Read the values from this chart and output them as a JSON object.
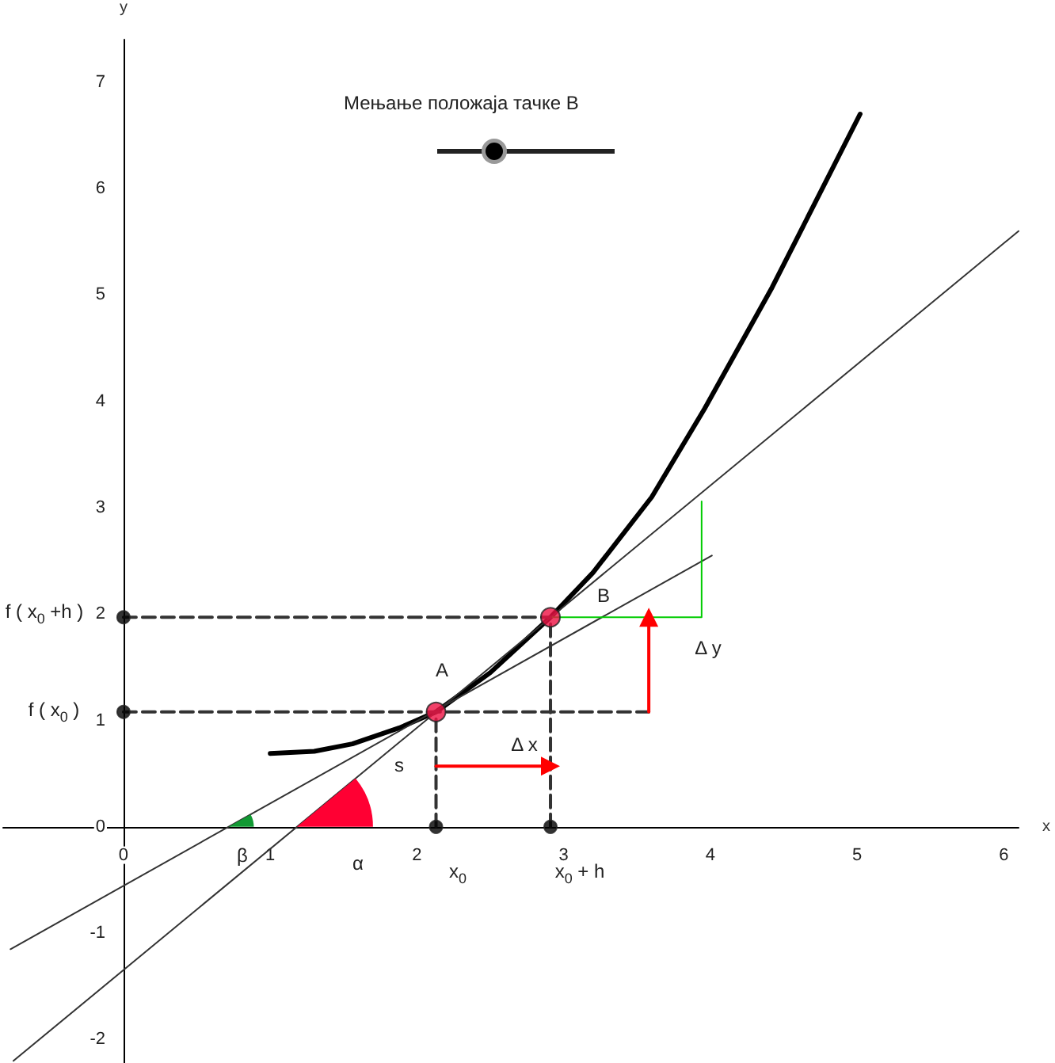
{
  "chart_data": {
    "type": "line",
    "title": "Мењање положаја тачке B",
    "xlabel": "x",
    "ylabel": "y",
    "xlim": [
      -0.82,
      6.1
    ],
    "ylim": [
      -2.22,
      7.4
    ],
    "xticks": [
      0,
      1,
      2,
      3,
      4,
      5,
      6
    ],
    "yticks": [
      -2,
      -1,
      0,
      1,
      2,
      3,
      4,
      5,
      6,
      7
    ],
    "grid": false,
    "marker": "none",
    "line_style": "solid",
    "series": [
      {
        "color": "#000000",
        "x": [
          1.0,
          1.3,
          1.56,
          1.88,
          2.13,
          2.5,
          2.91,
          3.2,
          3.6,
          3.96,
          4.42,
          5.02
        ],
        "values": [
          0.69,
          0.71,
          0.78,
          0.93,
          1.08,
          1.45,
          1.97,
          2.39,
          3.1,
          3.93,
          5.07,
          6.7
        ]
      },
      {
        "color": "#333333",
        "x": [
          -0.77,
          4.01
        ],
        "values": [
          -1.15,
          2.55
        ]
      },
      {
        "color": "#333333",
        "x": [
          -0.75,
          6.1
        ],
        "values": [
          -2.2,
          5.6
        ]
      },
      {
        "color": "#00cc00",
        "x": [
          2.91,
          3.94,
          3.94
        ],
        "values": [
          1.97,
          1.97,
          3.06
        ]
      },
      {
        "color": "#333333",
        "line_style": "dashed",
        "x": [
          0,
          3.58
        ],
        "values": [
          1.08,
          1.08
        ]
      },
      {
        "color": "#333333",
        "line_style": "dashed",
        "x": [
          0,
          2.91
        ],
        "values": [
          1.97,
          1.97
        ]
      },
      {
        "color": "#333333",
        "line_style": "dashed",
        "x": [
          2.13,
          2.13
        ],
        "values": [
          0,
          1.08
        ]
      },
      {
        "color": "#333333",
        "line_style": "dashed",
        "x": [
          2.91,
          2.91
        ],
        "values": [
          0,
          1.97
        ]
      },
      {
        "color": "#ff0000",
        "marker": "triangle",
        "x": [
          2.13,
          2.91
        ],
        "values": [
          0.57,
          0.57
        ]
      },
      {
        "color": "#ff0000",
        "marker": "triangle",
        "x": [
          3.58,
          3.58
        ],
        "values": [
          1.08,
          1.97
        ]
      },
      {
        "type": "scatter",
        "marker": "circle",
        "color": "#000000",
        "x": [
          0,
          0,
          2.13,
          2.91
        ],
        "values": [
          1.08,
          1.97,
          0,
          0
        ]
      },
      {
        "type": "scatter",
        "marker": "circle",
        "color": "#ee1144",
        "x": [
          2.13,
          2.91
        ],
        "values": [
          1.08,
          1.97
        ]
      }
    ],
    "annotations": [
      "A",
      "B",
      "s",
      "Δ x",
      "Δ y",
      "α",
      "β",
      "x$_{0}$",
      "x$_{0}$ + h",
      "f ( x$_{0}$ )",
      "f ( x$_{0}$ +h )"
    ]
  }
}
